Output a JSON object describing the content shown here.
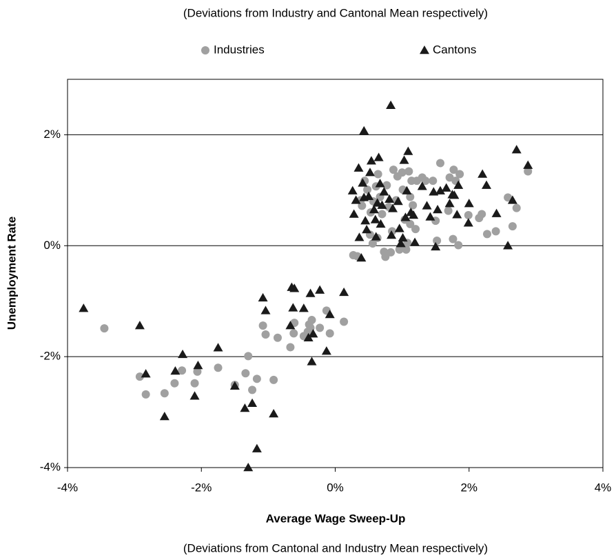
{
  "chart_data": {
    "type": "scatter",
    "subtitle": "(Deviations from Industry and Cantonal Mean respectively)",
    "x_label": "Average Wage Sweep-Up",
    "x_note": "(Deviations from Cantonal and Industry Mean respectively)",
    "y_label": "Unemployment Rate",
    "xlim": [
      -4,
      4
    ],
    "ylim": [
      -4,
      3
    ],
    "xticks": [
      {
        "value": -4,
        "label": "-4%"
      },
      {
        "value": -2,
        "label": "-2%"
      },
      {
        "value": 0,
        "label": "0%"
      },
      {
        "value": 2,
        "label": "2%"
      },
      {
        "value": 4,
        "label": "4%"
      }
    ],
    "yticks": [
      {
        "value": -4,
        "label": "-4%"
      },
      {
        "value": -2,
        "label": "-2%"
      },
      {
        "value": 0,
        "label": "0%"
      },
      {
        "value": 2,
        "label": "2%"
      }
    ],
    "grid": true,
    "series": [
      {
        "name": "Industries",
        "color": "#a0a0a0",
        "marker": "circle",
        "x": [
          -3.45,
          -2.92,
          -2.83,
          -2.55,
          -2.4,
          -2.29,
          -2.1,
          -2.06,
          -1.75,
          -1.5,
          -1.34,
          -1.3,
          -1.24,
          -1.17,
          -0.92,
          -1.08,
          -1.04,
          -0.86,
          -0.67,
          -0.62,
          -0.61,
          -0.47,
          -0.41,
          -0.37,
          -0.35,
          -0.39,
          -0.23,
          -0.13,
          -0.08,
          0.13,
          0.27,
          0.33,
          0.38,
          0.4,
          0.44,
          0.48,
          0.53,
          0.57,
          0.61,
          0.64,
          0.67,
          0.7,
          0.73,
          0.77,
          0.8,
          0.75,
          0.83,
          0.87,
          0.93,
          0.96,
          1.0,
          1.04,
          1.06,
          1.1,
          1.12,
          1.14,
          1.16,
          1.2,
          1.22,
          1.3,
          1.35,
          1.46,
          1.5,
          1.52,
          1.57,
          1.69,
          1.71,
          1.77,
          1.8,
          1.86,
          1.84,
          1.76,
          1.99,
          2.15,
          2.19,
          2.27,
          2.4,
          2.58,
          2.65,
          2.71,
          2.88,
          0.52,
          0.56,
          0.63,
          0.85,
          1.08,
          0.91,
          1.01,
          1.12
        ],
        "y": [
          -1.49,
          -2.36,
          -2.68,
          -2.66,
          -2.48,
          -2.25,
          -2.48,
          -2.27,
          -2.2,
          -2.51,
          -2.3,
          -1.99,
          -2.6,
          -2.4,
          -2.42,
          -1.44,
          -1.6,
          -1.66,
          -1.83,
          -1.58,
          -1.39,
          -1.63,
          -1.55,
          -1.48,
          -1.34,
          -1.42,
          -1.48,
          -1.17,
          -1.58,
          -1.37,
          -0.17,
          -0.19,
          0.82,
          0.72,
          1.17,
          1.01,
          0.6,
          0.8,
          1.07,
          1.29,
          0.88,
          0.57,
          -0.11,
          1.09,
          0.7,
          -0.2,
          -0.12,
          1.37,
          1.25,
          -0.07,
          1.32,
          0.47,
          -0.07,
          1.34,
          0.39,
          1.17,
          0.73,
          0.3,
          1.17,
          1.23,
          1.17,
          1.17,
          0.45,
          0.09,
          1.49,
          0.63,
          1.23,
          1.37,
          1.17,
          1.29,
          0.01,
          0.12,
          0.55,
          0.5,
          0.57,
          0.21,
          0.26,
          0.87,
          0.35,
          0.68,
          1.34,
          0.2,
          0.04,
          0.14,
          0.26,
          0.05,
          0.82,
          1.01,
          0.88
        ]
      },
      {
        "name": "Cantons",
        "color": "#1a1a1a",
        "marker": "triangle",
        "x": [
          -3.76,
          -2.92,
          -2.83,
          -2.55,
          -2.39,
          -2.28,
          -2.1,
          -2.05,
          -1.75,
          -1.5,
          -1.35,
          -1.3,
          -1.24,
          -1.17,
          -0.92,
          -1.08,
          -1.04,
          -0.67,
          -0.65,
          -0.61,
          -0.63,
          -0.47,
          -0.4,
          -0.37,
          -0.35,
          -0.33,
          -0.23,
          -0.13,
          -0.08,
          0.13,
          0.83,
          0.43,
          0.26,
          0.28,
          0.31,
          0.35,
          0.36,
          0.39,
          0.41,
          0.43,
          0.45,
          0.47,
          0.5,
          0.52,
          0.54,
          0.58,
          0.6,
          0.61,
          0.63,
          0.65,
          0.67,
          0.68,
          0.7,
          0.73,
          0.81,
          0.84,
          0.86,
          0.94,
          0.96,
          0.98,
          1.01,
          1.03,
          1.05,
          1.07,
          1.09,
          1.13,
          1.17,
          1.19,
          1.3,
          1.37,
          1.42,
          1.47,
          1.5,
          1.53,
          1.57,
          1.66,
          1.71,
          1.75,
          1.78,
          1.82,
          1.84,
          1.99,
          2.0,
          2.2,
          2.26,
          2.41,
          2.58,
          2.65,
          2.71,
          2.88
        ],
        "y": [
          -1.13,
          -1.44,
          -2.31,
          -3.08,
          -2.26,
          -1.96,
          -2.71,
          -2.16,
          -1.84,
          -2.53,
          -2.93,
          -4.0,
          -2.84,
          -3.66,
          -3.03,
          -0.94,
          -1.17,
          -1.44,
          -0.75,
          -0.77,
          -1.12,
          -1.13,
          -1.66,
          -0.86,
          -2.09,
          -1.59,
          -0.8,
          -1.9,
          -1.24,
          -0.84,
          2.53,
          2.07,
          0.99,
          0.57,
          0.82,
          1.4,
          0.15,
          -0.22,
          1.13,
          0.87,
          0.45,
          0.29,
          0.89,
          1.32,
          1.53,
          0.65,
          0.47,
          0.16,
          0.77,
          1.59,
          1.12,
          0.39,
          0.73,
          0.97,
          0.84,
          0.19,
          0.67,
          0.8,
          0.31,
          0.04,
          0.14,
          1.54,
          0.51,
          0.99,
          1.7,
          0.6,
          0.55,
          0.06,
          1.07,
          0.72,
          0.52,
          0.97,
          -0.02,
          0.65,
          0.99,
          1.04,
          0.76,
          0.92,
          0.91,
          0.56,
          1.09,
          0.41,
          0.76,
          1.29,
          1.09,
          0.58,
          0.0,
          0.82,
          1.73,
          1.45
        ]
      }
    ]
  }
}
